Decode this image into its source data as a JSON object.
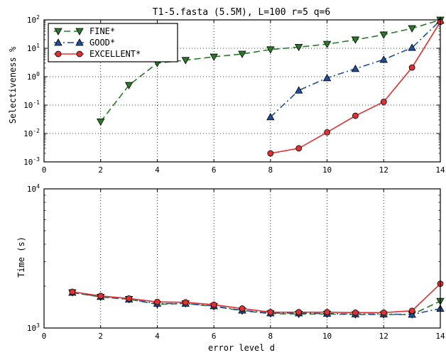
{
  "chart_data": [
    {
      "type": "line",
      "title": "T1-5.fasta (5.5M), L=100 r=5 q=6",
      "xlabel": "",
      "ylabel": "Selectiveness %",
      "yscale": "log",
      "xlim": [
        0,
        14
      ],
      "ylim": [
        0.001,
        100
      ],
      "grid": true,
      "legend_position": "top-left",
      "x_ticks": [
        "0",
        "2",
        "4",
        "6",
        "8",
        "10",
        "12",
        "14"
      ],
      "y_ticks": [
        {
          "base": "10",
          "exp": "-3"
        },
        {
          "base": "10",
          "exp": "-2"
        },
        {
          "base": "10",
          "exp": "-1"
        },
        {
          "base": "10",
          "exp": "0"
        },
        {
          "base": "10",
          "exp": "1"
        },
        {
          "base": "10",
          "exp": "2"
        }
      ],
      "series": [
        {
          "name": "FINE*",
          "color": "#2a7a2a",
          "marker": "triangle-down",
          "line": "dashed",
          "x": [
            2,
            3,
            4,
            5,
            6,
            7,
            8,
            9,
            10,
            11,
            12,
            13,
            14
          ],
          "y": [
            0.026,
            0.5,
            3,
            3.8,
            5,
            6.3,
            9,
            11,
            14,
            20,
            30,
            50,
            100
          ]
        },
        {
          "name": "GOOD*",
          "color": "#1f4e9a",
          "marker": "triangle-up",
          "line": "dashdot",
          "x": [
            8,
            9,
            10,
            11,
            12,
            13,
            14
          ],
          "y": [
            0.038,
            0.33,
            0.9,
            1.9,
            4,
            10.5,
            95
          ]
        },
        {
          "name": "EXCELLENT*",
          "color": "#e23030",
          "marker": "circle",
          "line": "solid",
          "x": [
            8,
            9,
            10,
            11,
            12,
            13,
            14
          ],
          "y": [
            0.002,
            0.003,
            0.011,
            0.042,
            0.13,
            2.1,
            85
          ]
        }
      ]
    },
    {
      "type": "line",
      "title": "",
      "xlabel": "error level d",
      "ylabel": "Time (s)",
      "yscale": "log",
      "xlim": [
        0,
        14
      ],
      "ylim": [
        1000,
        10000
      ],
      "grid": true,
      "x_ticks": [
        "0",
        "2",
        "4",
        "6",
        "8",
        "10",
        "12",
        "14"
      ],
      "y_ticks": [
        {
          "base": "10",
          "exp": "3"
        },
        {
          "base": "10",
          "exp": "4"
        }
      ],
      "series": [
        {
          "name": "FINE*",
          "color": "#2a7a2a",
          "marker": "triangle-down",
          "line": "dashed",
          "x": [
            1,
            2,
            3,
            4,
            5,
            6,
            7,
            8,
            9,
            10,
            11,
            12,
            13,
            14
          ],
          "y": [
            1800,
            1670,
            1610,
            1480,
            1500,
            1430,
            1330,
            1270,
            1260,
            1260,
            1250,
            1250,
            1250,
            1560
          ]
        },
        {
          "name": "GOOD*",
          "color": "#1f4e9a",
          "marker": "triangle-up",
          "line": "dashdot",
          "x": [
            1,
            2,
            3,
            4,
            5,
            6,
            7,
            8,
            9,
            10,
            11,
            12,
            13,
            14
          ],
          "y": [
            1800,
            1680,
            1610,
            1500,
            1500,
            1440,
            1340,
            1280,
            1280,
            1270,
            1260,
            1260,
            1250,
            1380
          ]
        },
        {
          "name": "EXCELLENT*",
          "color": "#e23030",
          "marker": "circle",
          "line": "solid",
          "x": [
            1,
            2,
            3,
            4,
            5,
            6,
            7,
            8,
            9,
            10,
            11,
            12,
            13,
            14
          ],
          "y": [
            1820,
            1700,
            1630,
            1540,
            1530,
            1470,
            1380,
            1300,
            1300,
            1300,
            1290,
            1290,
            1330,
            2080
          ]
        }
      ]
    }
  ]
}
